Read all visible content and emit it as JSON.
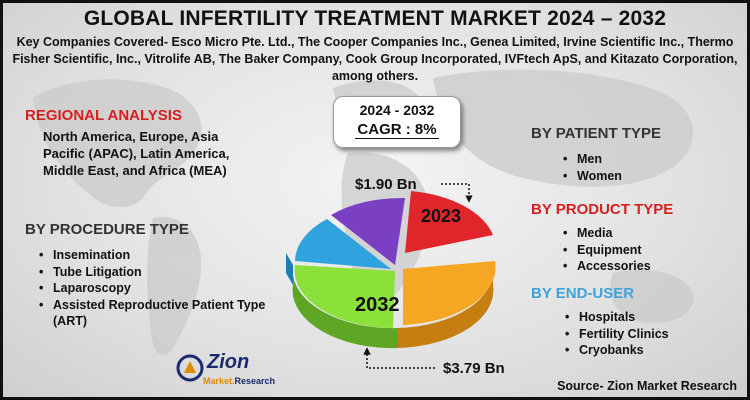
{
  "title": "GLOBAL INFERTILITY TREATMENT MARKET 2024 – 2032",
  "key_companies": "Key Companies Covered- Esco Micro Pte. Ltd., The Cooper Companies Inc., Genea Limited, Irvine Scientific Inc., Thermo Fisher Scientific, Inc., Vitrolife AB, The Baker Company, Cook Group Incorporated, IVFtech ApS, and Kitazato Corporation, among others.",
  "cagr": {
    "years": "2024 - 2032",
    "value": "CAGR :  8%"
  },
  "regional": {
    "heading": "REGIONAL ANALYSIS",
    "text": "North America, Europe, Asia Pacific (APAC), Latin America, Middle East, and Africa (MEA)"
  },
  "procedure": {
    "heading": "BY PROCEDURE TYPE",
    "items": [
      "Insemination",
      "Tube Litigation",
      "Laparoscopy",
      "Assisted Reproductive Patient Type (ART)"
    ]
  },
  "patient": {
    "heading": "BY PATIENT TYPE",
    "items": [
      "Men",
      "Women"
    ]
  },
  "product": {
    "heading": "BY PRODUCT TYPE",
    "items": [
      "Media",
      "Equipment",
      "Accessories"
    ]
  },
  "end_user": {
    "heading": "BY END-USER",
    "items": [
      "Hospitals",
      "Fertility Clinics",
      "Cryobanks"
    ]
  },
  "market": {
    "value_2023": "$1.90 Bn",
    "label_2023": "2023",
    "value_2032": "$3.79 Bn",
    "label_2032": "2032"
  },
  "colors": {
    "red": "#e0262b",
    "orange": "#f5a623",
    "green": "#8be03a",
    "blue": "#2fa3dd",
    "purple": "#7b3fc4",
    "heading_red": "#d62020",
    "heading_blue": "#3ea3d9"
  },
  "logo": {
    "name": "Zion",
    "sub_a": "Market.",
    "sub_b": "Research"
  },
  "source": "Source- Zion Market Research"
}
